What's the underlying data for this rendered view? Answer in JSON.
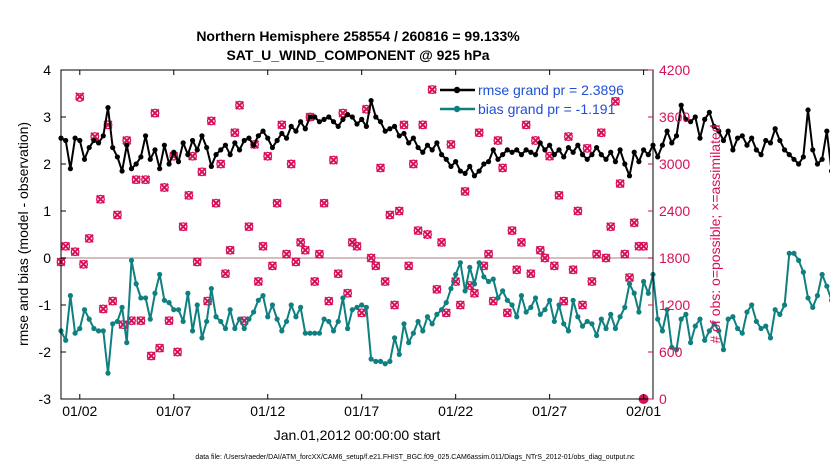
{
  "chart_data": {
    "type": "line",
    "title": "Northern Hemisphere 258554 / 260816 = 99.133%",
    "subtitle": "SAT_U_WIND_COMPONENT @ 925 hPa",
    "xlabel": "Jan.01,2012 00:00:00 start",
    "ylabel": "rmse and bias (model - observation)",
    "y2label": "# of obs: o=possible; ×=assimilated",
    "footnote": "data file: /Users/raeder/DAI/ATM_forcXX/CAM6_setup/f.e21.FHIST_BGC.f09_025.CAM6assim.011/Diags_NTrS_2012-01/obs_diag_output.nc",
    "xlim": [
      0,
      31.5
    ],
    "ylim": [
      -3,
      4
    ],
    "y2lim": [
      0,
      4200
    ],
    "x_ticks": [
      {
        "day": 1,
        "label": "01/02"
      },
      {
        "day": 6,
        "label": "01/07"
      },
      {
        "day": 11,
        "label": "01/12"
      },
      {
        "day": 16,
        "label": "01/17"
      },
      {
        "day": 21,
        "label": "01/22"
      },
      {
        "day": 26,
        "label": "01/27"
      },
      {
        "day": 31,
        "label": "02/01"
      }
    ],
    "y_ticks": [
      "-3",
      "-2",
      "-1",
      "0",
      "1",
      "2",
      "3",
      "4"
    ],
    "y2_ticks": [
      "0",
      "600",
      "1200",
      "1800",
      "2400",
      "3000",
      "3600",
      "4200"
    ],
    "x_step_days": 0.25,
    "colors": {
      "rmse": "#000000",
      "bias": "#0f7f7f",
      "obs": "#d6105a",
      "zero_line": "#c9a8a8",
      "legend_text": "#1f4fd6"
    },
    "legend_position": "top-right",
    "series": [
      {
        "name": "rmse grand pr = 2.3896",
        "values": [
          2.55,
          2.5,
          1.9,
          2.55,
          2.5,
          2.1,
          2.35,
          2.5,
          2.45,
          2.6,
          3.2,
          2.35,
          2.15,
          1.85,
          2.4,
          1.9,
          2.0,
          2.15,
          2.6,
          2.1,
          2.3,
          1.9,
          2.4,
          2.0,
          2.25,
          2.05,
          2.45,
          2.2,
          2.5,
          2.3,
          2.6,
          2.35,
          1.95,
          2.2,
          2.3,
          2.4,
          2.2,
          2.45,
          2.3,
          2.5,
          2.55,
          2.4,
          2.6,
          2.7,
          2.55,
          2.35,
          2.5,
          2.65,
          2.55,
          2.8,
          2.7,
          2.9,
          2.75,
          3.0,
          3.0,
          2.9,
          2.95,
          3.0,
          2.9,
          2.8,
          2.95,
          3.05,
          3.0,
          2.85,
          2.95,
          2.8,
          3.35,
          3.0,
          2.9,
          2.7,
          2.75,
          2.8,
          2.6,
          2.65,
          2.45,
          2.55,
          2.35,
          2.25,
          2.4,
          2.3,
          2.45,
          2.2,
          2.1,
          1.95,
          2.05,
          1.85,
          1.8,
          1.95,
          1.75,
          1.85,
          2.0,
          2.05,
          2.3,
          2.1,
          2.2,
          2.3,
          2.25,
          2.3,
          2.2,
          2.3,
          2.25,
          2.2,
          2.45,
          2.3,
          2.4,
          2.2,
          2.3,
          2.15,
          2.35,
          2.25,
          2.4,
          2.2,
          2.1,
          2.2,
          2.35,
          2.2,
          2.1,
          2.25,
          2.05,
          2.3,
          2.0,
          1.75,
          2.25,
          2.05,
          2.3,
          2.2,
          2.4,
          2.15,
          2.4,
          2.7,
          2.45,
          2.6,
          3.25,
          2.95,
          2.9,
          3.0,
          2.55,
          2.95,
          3.1,
          2.8,
          2.7,
          2.5,
          2.7,
          2.3,
          2.55,
          2.6,
          2.4,
          2.55,
          2.3,
          2.2,
          2.5,
          2.45,
          2.75,
          2.5,
          2.3,
          2.2,
          2.1,
          2.0,
          2.15,
          3.15,
          2.3,
          2.0,
          2.1,
          2.7,
          1.85,
          2.2,
          2.15,
          2.4,
          2.3,
          2.5,
          2.85,
          2.95
        ]
      },
      {
        "name": "bias grand pr = -1.191",
        "values": [
          -1.55,
          -1.75,
          -0.8,
          -1.6,
          -1.5,
          -1.1,
          -1.3,
          -1.5,
          -1.55,
          -1.55,
          -2.45,
          -1.4,
          -1.35,
          -1.05,
          -1.8,
          -0.05,
          -0.55,
          -0.85,
          -0.85,
          -1.3,
          -0.75,
          -0.35,
          -0.9,
          -0.95,
          -1.1,
          -1.1,
          -1.35,
          -0.75,
          -1.55,
          -1.0,
          -1.7,
          -1.35,
          -0.65,
          -1.25,
          -1.35,
          -1.5,
          -1.1,
          -1.5,
          -1.3,
          -1.5,
          -1.3,
          -1.15,
          -0.9,
          -0.8,
          -1.25,
          -1.0,
          -1.3,
          -1.55,
          -1.35,
          -1.0,
          -1.25,
          -1.05,
          -1.6,
          -1.6,
          -1.6,
          -1.6,
          -1.3,
          -1.35,
          -1.55,
          -1.35,
          -0.85,
          -1.5,
          -1.1,
          -1.05,
          -1.0,
          -1.05,
          -2.15,
          -2.2,
          -2.2,
          -2.25,
          -2.2,
          -1.7,
          -2.05,
          -1.4,
          -1.8,
          -1.6,
          -1.35,
          -1.55,
          -1.25,
          -1.4,
          -1.2,
          -1.1,
          -0.95,
          -0.65,
          -0.35,
          -0.1,
          -0.7,
          -0.2,
          -0.55,
          -0.1,
          -0.4,
          -0.5,
          -0.45,
          -0.85,
          -0.7,
          -0.9,
          -1.0,
          -1.25,
          -0.8,
          -1.15,
          -1.05,
          -0.85,
          -1.2,
          -1.1,
          -0.9,
          -1.35,
          -1.0,
          -1.4,
          -1.55,
          -0.9,
          -1.25,
          -1.45,
          -1.35,
          -1.4,
          -1.65,
          -1.3,
          -1.5,
          -1.2,
          -1.5,
          -1.25,
          -1.05,
          -0.55,
          -0.75,
          -1.15,
          -0.5,
          -0.75,
          -0.35,
          -1.3,
          -1.55,
          -1.1,
          -1.9,
          -1.95,
          -1.3,
          -1.2,
          -1.8,
          -1.45,
          -1.3,
          -1.75,
          -1.55,
          -1.4,
          -1.55,
          -1.95,
          -1.3,
          -1.25,
          -1.5,
          -1.6,
          -1.15,
          -1.0,
          -1.35,
          -1.5,
          -1.45,
          -1.7,
          -1.1,
          -1.2,
          -1.0,
          0.1,
          0.1,
          -0.05,
          -0.3,
          -0.85,
          -1.05,
          -0.8,
          -0.35,
          -0.6,
          -0.9,
          0.05,
          -1.0,
          -1.3,
          -1.5,
          -1.35,
          -1.7,
          -1.85
        ]
      }
    ],
    "obs_counts": {
      "x": [
        0.0,
        0.25,
        0.75,
        1.0,
        1.2,
        1.5,
        1.8,
        2.1,
        2.25,
        2.5,
        2.75,
        3.0,
        3.3,
        3.5,
        3.75,
        4.0,
        4.25,
        4.5,
        4.8,
        5.0,
        5.25,
        5.5,
        5.75,
        6.0,
        6.2,
        6.5,
        6.8,
        7.0,
        7.25,
        7.5,
        7.8,
        8.0,
        8.25,
        8.5,
        8.75,
        9.0,
        9.25,
        9.5,
        9.75,
        10.0,
        10.3,
        10.5,
        10.75,
        11.0,
        11.25,
        11.5,
        11.75,
        12.0,
        12.25,
        12.5,
        12.75,
        13.0,
        13.25,
        13.5,
        13.75,
        14.0,
        14.25,
        14.5,
        14.75,
        15.0,
        15.25,
        15.5,
        15.75,
        16.0,
        16.25,
        16.5,
        16.75,
        17.0,
        17.25,
        17.5,
        17.75,
        18.0,
        18.25,
        18.5,
        18.75,
        19.0,
        19.25,
        19.5,
        19.75,
        20.0,
        20.25,
        20.5,
        20.75,
        21.0,
        21.25,
        21.5,
        21.75,
        22.0,
        22.25,
        22.5,
        22.75,
        23.0,
        23.25,
        23.5,
        23.75,
        24.0,
        24.25,
        24.5,
        24.75,
        25.0,
        25.25,
        25.5,
        25.75,
        26.0,
        26.25,
        26.5,
        26.75,
        27.0,
        27.25,
        27.5,
        27.75,
        28.0,
        28.25,
        28.5,
        28.75,
        29.0,
        29.25,
        29.5,
        29.75,
        30.0,
        30.25,
        30.5,
        30.75,
        31.0
      ],
      "assimilated": [
        1750,
        1950,
        1880,
        3860,
        1720,
        2050,
        3350,
        2550,
        1150,
        3500,
        1250,
        2350,
        950,
        3300,
        1000,
        2800,
        1000,
        2800,
        550,
        3650,
        650,
        2700,
        1000,
        3100,
        600,
        2200,
        2600,
        3100,
        1750,
        2900,
        1250,
        3550,
        2500,
        3000,
        1600,
        1900,
        3400,
        3750,
        1000,
        2200,
        3250,
        1500,
        1950,
        3100,
        1700,
        2500,
        3500,
        1850,
        3000,
        1750,
        2000,
        1900,
        3600,
        1500,
        1850,
        2500,
        1250,
        3050,
        1600,
        3650,
        1350,
        2000,
        1950,
        1100,
        3700,
        1800,
        1700,
        2950,
        1500,
        2350,
        1200,
        2400,
        3500,
        1700,
        3000,
        2150,
        3500,
        2100,
        3950,
        1400,
        2000,
        1100,
        3250,
        1500,
        1200,
        2650,
        1450,
        1350,
        3400,
        1700,
        1850,
        1250,
        3300,
        2950,
        1100,
        2150,
        1650,
        2000,
        3500,
        1600,
        3300,
        1900,
        1800,
        3100,
        1700,
        2600,
        1250,
        3350,
        1650,
        2400,
        1200,
        3200,
        1500,
        1850,
        3400,
        1800,
        2200,
        3800,
        2750,
        1850,
        1550,
        2250,
        1950,
        1950
      ],
      "possible": [
        1750,
        1950,
        1880,
        3850,
        1720,
        2050,
        3350,
        2550,
        1150,
        3500,
        1250,
        2350,
        950,
        3300,
        1000,
        2800,
        1000,
        2800,
        550,
        3650,
        650,
        2700,
        1000,
        3100,
        600,
        2200,
        2600,
        3100,
        1750,
        2900,
        1250,
        3550,
        2500,
        3000,
        1600,
        1900,
        3400,
        3750,
        1000,
        2200,
        3250,
        1500,
        1950,
        3100,
        1700,
        2500,
        3500,
        1850,
        3000,
        1750,
        2000,
        1900,
        3600,
        1500,
        1850,
        2500,
        1250,
        3050,
        1600,
        3650,
        1350,
        2000,
        1950,
        1100,
        3700,
        1800,
        1700,
        2950,
        1500,
        2350,
        1200,
        2400,
        3500,
        1700,
        3000,
        2150,
        3500,
        2100,
        3950,
        1400,
        2000,
        1100,
        3250,
        1500,
        1200,
        2650,
        1450,
        1350,
        3400,
        1700,
        1850,
        1250,
        3300,
        2950,
        1100,
        2150,
        1650,
        2000,
        3500,
        1600,
        3300,
        1900,
        1800,
        3100,
        1700,
        2600,
        1250,
        3350,
        1650,
        2400,
        1200,
        3200,
        1500,
        1850,
        3400,
        1800,
        2200,
        3800,
        2750,
        1850,
        1550,
        2250,
        1950,
        1950
      ]
    },
    "extra_obs_points": [
      {
        "x": 31.0,
        "value": 0
      }
    ]
  }
}
